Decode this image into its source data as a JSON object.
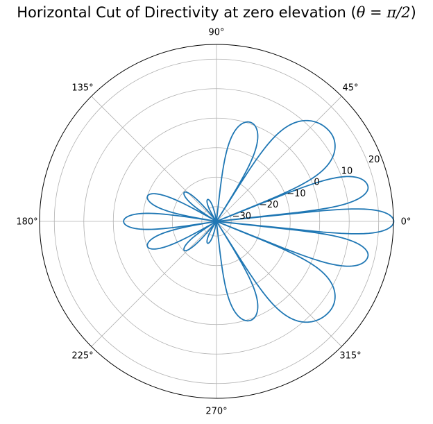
{
  "chart_data": {
    "type": "line",
    "projection": "polar",
    "title_prefix": "Horizontal Cut of Directivity at zero elevation (",
    "title_math": "θ = π/2",
    "title_suffix": ")",
    "angle_unit": "degrees",
    "radial_unit": "dBi",
    "rlim": [
      -35,
      25
    ],
    "grid": true,
    "angular_ticks": [
      "0°",
      "45°",
      "90°",
      "135°",
      "180°",
      "225°",
      "270°",
      "315°"
    ],
    "angular_tick_values": [
      0,
      45,
      90,
      135,
      180,
      225,
      270,
      315
    ],
    "radial_ticks": [
      "−30",
      "−20",
      "−10",
      "0",
      "10",
      "20"
    ],
    "radial_tick_values": [
      -30,
      -20,
      -10,
      0,
      10,
      20
    ],
    "radial_label_angle": 22.5,
    "series": [
      {
        "color": "#1f77b4",
        "lobes": [
          {
            "center": 0,
            "peak": 25.1,
            "null_left": -6,
            "null_right": 6
          },
          {
            "center": 13,
            "peak": 17.7,
            "null_left": 6,
            "null_right": 22
          },
          {
            "center": -13,
            "peak": 17.7,
            "null_left": -22,
            "null_right": -6
          },
          {
            "center": 38,
            "peak": 14.0,
            "null_left": 22,
            "null_right": 58
          },
          {
            "center": -38,
            "peak": 14.0,
            "null_left": -58,
            "null_right": -22
          },
          {
            "center": 71,
            "peak": 0.5,
            "null_left": 58,
            "null_right": 84
          },
          {
            "center": -71,
            "peak": 0.5,
            "null_left": -84,
            "null_right": -58
          },
          {
            "center": 112,
            "peak": -27,
            "null_left": 96,
            "null_right": 128
          },
          {
            "center": -112,
            "peak": -27,
            "null_left": -128,
            "null_right": -96
          },
          {
            "center": 138,
            "peak": -20.3,
            "null_left": 128,
            "null_right": 150
          },
          {
            "center": -138,
            "peak": -20.3,
            "null_left": -150,
            "null_right": -128
          },
          {
            "center": 160,
            "peak": -10.1,
            "null_left": 150,
            "null_right": 171
          },
          {
            "center": -160,
            "peak": -10.1,
            "null_left": -171,
            "null_right": -150
          },
          {
            "center": 180,
            "peak": -3.5,
            "null_left": 171,
            "null_right": 189
          }
        ]
      }
    ]
  }
}
